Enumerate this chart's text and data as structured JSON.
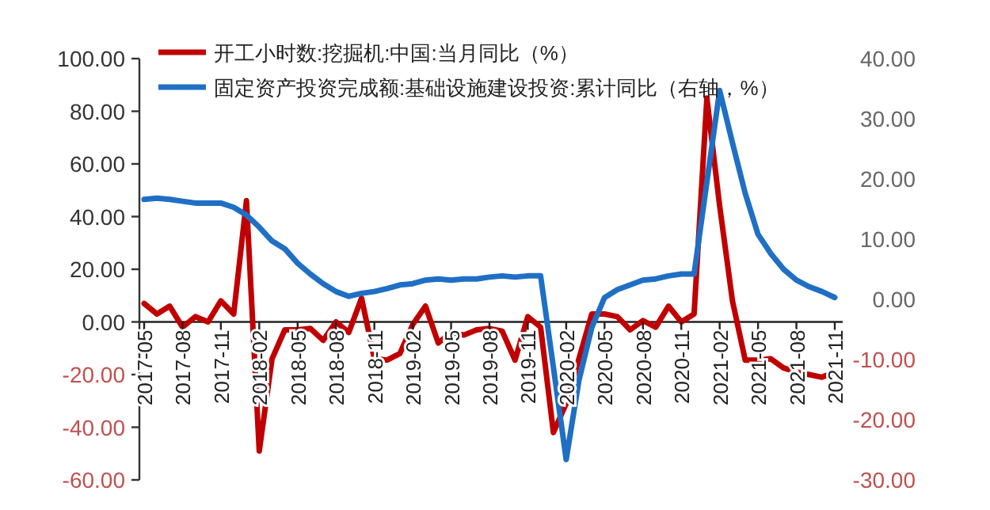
{
  "chart_data": {
    "type": "line",
    "legend": "top left",
    "grid": false,
    "categories": [
      "2017-05",
      null,
      null,
      "2017-08",
      null,
      null,
      "2017-11",
      null,
      null,
      "2018-02",
      null,
      null,
      "2018-05",
      null,
      null,
      "2018-08",
      null,
      null,
      "2018-11",
      null,
      null,
      "2019-02",
      null,
      null,
      "2019-05",
      null,
      null,
      "2019-08",
      null,
      null,
      "2019-11",
      null,
      null,
      "2020-02",
      null,
      null,
      "2020-05",
      null,
      null,
      "2020-08",
      null,
      null,
      "2020-11",
      null,
      null,
      "2021-02",
      null,
      null,
      "2021-05",
      null,
      null,
      "2021-08",
      null,
      null,
      "2021-11"
    ],
    "ylim": [
      -60,
      100
    ],
    "yticks": [
      {
        "value": 100,
        "label": "100.00"
      },
      {
        "value": 80,
        "label": "80.00"
      },
      {
        "value": 60,
        "label": "60.00"
      },
      {
        "value": 40,
        "label": "40.00"
      },
      {
        "value": 20,
        "label": "20.00"
      },
      {
        "value": 0,
        "label": "0.00"
      },
      {
        "value": -20,
        "label": "-20.00"
      },
      {
        "value": -40,
        "label": "-40.00"
      },
      {
        "value": -60,
        "label": "-60.00"
      }
    ],
    "y2lim": [
      -30,
      40
    ],
    "y2ticks": [
      {
        "value": 40,
        "label": "40.00"
      },
      {
        "value": 30,
        "label": "30.00"
      },
      {
        "value": 20,
        "label": "20.00"
      },
      {
        "value": 10,
        "label": "10.00"
      },
      {
        "value": 0,
        "label": "0.00"
      },
      {
        "value": -10,
        "label": "-10.00"
      },
      {
        "value": -20,
        "label": "-20.00"
      },
      {
        "value": -30,
        "label": "-30.00"
      }
    ],
    "series": [
      {
        "name": "开工小时数:挖掘机:中国:当月同比（%）",
        "color": "#c00000",
        "values": [
          7,
          3,
          6,
          -2,
          2,
          0,
          8,
          3,
          46,
          -49,
          -14,
          -3,
          -3,
          -2.5,
          -7,
          0,
          -4,
          9,
          -14,
          -14.5,
          -12,
          -1,
          6,
          -8,
          -4,
          -5,
          -3,
          -2.5,
          -3.5,
          -14.5,
          2,
          -2,
          -42,
          -31,
          -14,
          3,
          3,
          2,
          -3,
          0.5,
          -2,
          6,
          0,
          3,
          85,
          44,
          8,
          -14.5,
          -14.5,
          -14,
          -17.5,
          -19,
          -20,
          -21,
          -19
        ]
      },
      {
        "name": "固定资产投资完成额:基础设施建设投资:累计同比（右轴，%）",
        "color": "#1f6fc5",
        "axis": "y2",
        "values": [
          16.6,
          16.8,
          16.6,
          16.3,
          16,
          16,
          16,
          15.3,
          14,
          12,
          9.7,
          8.4,
          6,
          4.2,
          2.6,
          1.3,
          0.5,
          1,
          1.3,
          1.8,
          2.4,
          2.6,
          3.2,
          3.4,
          3.2,
          3.4,
          3.4,
          3.7,
          3.9,
          3.7,
          3.9,
          3.9,
          -11.3,
          -26.6,
          -13.4,
          -4.7,
          0.3,
          1.6,
          2.4,
          3.2,
          3.4,
          3.9,
          4.2,
          4.2,
          19.5,
          34.7,
          26,
          17.6,
          10.8,
          7.6,
          5,
          3.2,
          2.1,
          1.3,
          0.3
        ]
      }
    ]
  }
}
